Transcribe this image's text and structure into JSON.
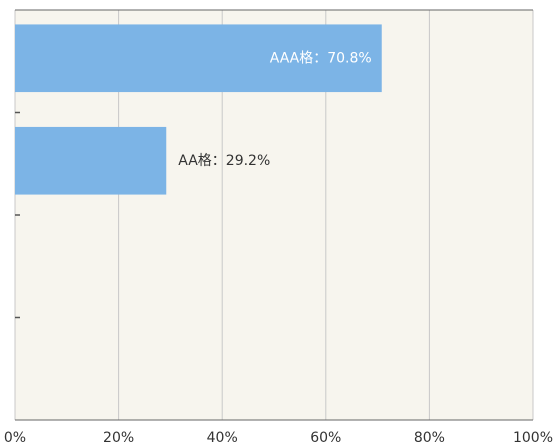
{
  "chart_data": {
    "type": "bar",
    "orientation": "horizontal",
    "categories": [
      null,
      null,
      null,
      null
    ],
    "values": [
      70.8,
      29.2,
      null,
      null
    ],
    "value_labels": [
      "AAA格：70.8%",
      "AA格：29.2%",
      null,
      null
    ],
    "color": "#7cb4e6",
    "xlim": [
      0,
      100
    ],
    "xticks": [
      {
        "value": 0,
        "label": "0%"
      },
      {
        "value": 20,
        "label": "20%"
      },
      {
        "value": 40,
        "label": "40%"
      },
      {
        "value": 60,
        "label": "60%"
      },
      {
        "value": 80,
        "label": "80%"
      },
      {
        "value": 100,
        "label": "100%"
      }
    ],
    "grid": true
  }
}
